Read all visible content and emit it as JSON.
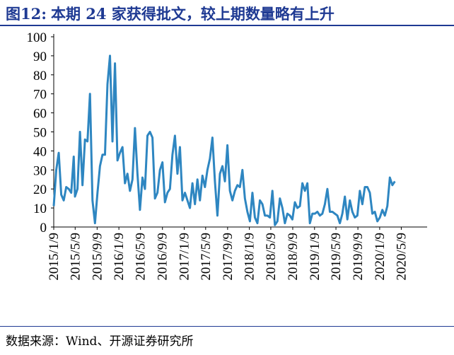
{
  "title": {
    "label": "图12:",
    "text": "本期 24 家获得批文，较上期数量略有上升"
  },
  "source": "数据来源：Wind、开源证券研究所",
  "colors": {
    "line": "#2e86c1",
    "title": "#1f3a93",
    "rule": "#1f3a93"
  },
  "chart_data": {
    "type": "line",
    "ylim": [
      0,
      100
    ],
    "yticks": [
      0,
      10,
      20,
      30,
      40,
      50,
      60,
      70,
      80,
      90,
      100
    ],
    "xlim": [
      "2015-01-09",
      "2020-09-15"
    ],
    "xtick_labels": [
      "2015/1/9",
      "2015/5/9",
      "2015/9/9",
      "2016/1/9",
      "2016/5/9",
      "2016/9/9",
      "2017/1/9",
      "2017/5/9",
      "2017/9/9",
      "2018/1/9",
      "2018/5/9",
      "2018/9/9",
      "2019/1/9",
      "2019/5/9",
      "2019/9/9",
      "2020/1/9",
      "2020/5/9"
    ],
    "grid": false,
    "legend": "none",
    "series": [
      {
        "values": [
          [
            "2015-01-09",
            11
          ],
          [
            "2015-01-23",
            30
          ],
          [
            "2015-02-06",
            39
          ],
          [
            "2015-02-20",
            17
          ],
          [
            "2015-03-06",
            14
          ],
          [
            "2015-03-20",
            21
          ],
          [
            "2015-04-03",
            20
          ],
          [
            "2015-04-17",
            18
          ],
          [
            "2015-05-01",
            37
          ],
          [
            "2015-05-08",
            16
          ],
          [
            "2015-05-22",
            20
          ],
          [
            "2015-06-05",
            50
          ],
          [
            "2015-06-19",
            22
          ],
          [
            "2015-07-03",
            46
          ],
          [
            "2015-07-17",
            45
          ],
          [
            "2015-07-31",
            70
          ],
          [
            "2015-08-14",
            14
          ],
          [
            "2015-08-28",
            2
          ],
          [
            "2015-09-11",
            18
          ],
          [
            "2015-09-25",
            32
          ],
          [
            "2015-10-09",
            38
          ],
          [
            "2015-10-23",
            38
          ],
          [
            "2015-11-06",
            75
          ],
          [
            "2015-11-20",
            90
          ],
          [
            "2015-12-04",
            45
          ],
          [
            "2015-12-18",
            86
          ],
          [
            "2016-01-01",
            35
          ],
          [
            "2016-01-15",
            39
          ],
          [
            "2016-01-29",
            42
          ],
          [
            "2016-02-12",
            23
          ],
          [
            "2016-02-26",
            28
          ],
          [
            "2016-03-11",
            19
          ],
          [
            "2016-03-25",
            25
          ],
          [
            "2016-04-08",
            52
          ],
          [
            "2016-04-22",
            28
          ],
          [
            "2016-05-06",
            9
          ],
          [
            "2016-05-20",
            26
          ],
          [
            "2016-06-03",
            20
          ],
          [
            "2016-06-17",
            48
          ],
          [
            "2016-07-01",
            50
          ],
          [
            "2016-07-15",
            47
          ],
          [
            "2016-07-29",
            15
          ],
          [
            "2016-08-12",
            18
          ],
          [
            "2016-08-26",
            30
          ],
          [
            "2016-09-09",
            34
          ],
          [
            "2016-09-23",
            13
          ],
          [
            "2016-10-07",
            18
          ],
          [
            "2016-10-21",
            20
          ],
          [
            "2016-11-04",
            38
          ],
          [
            "2016-11-18",
            48
          ],
          [
            "2016-12-02",
            28
          ],
          [
            "2016-12-16",
            42
          ],
          [
            "2016-12-30",
            14
          ],
          [
            "2017-01-13",
            18
          ],
          [
            "2017-01-27",
            14
          ],
          [
            "2017-02-10",
            10
          ],
          [
            "2017-02-24",
            23
          ],
          [
            "2017-03-10",
            12
          ],
          [
            "2017-03-24",
            25
          ],
          [
            "2017-04-07",
            14
          ],
          [
            "2017-04-21",
            27
          ],
          [
            "2017-05-05",
            21
          ],
          [
            "2017-05-19",
            30
          ],
          [
            "2017-06-02",
            36
          ],
          [
            "2017-06-16",
            47
          ],
          [
            "2017-06-30",
            24
          ],
          [
            "2017-07-14",
            6
          ],
          [
            "2017-07-28",
            28
          ],
          [
            "2017-08-11",
            32
          ],
          [
            "2017-08-25",
            24
          ],
          [
            "2017-09-08",
            43
          ],
          [
            "2017-09-22",
            19
          ],
          [
            "2017-10-06",
            14
          ],
          [
            "2017-10-20",
            19
          ],
          [
            "2017-11-03",
            22
          ],
          [
            "2017-11-17",
            21
          ],
          [
            "2017-12-01",
            30
          ],
          [
            "2017-12-15",
            15
          ],
          [
            "2017-12-29",
            8
          ],
          [
            "2018-01-12",
            3
          ],
          [
            "2018-01-26",
            18
          ],
          [
            "2018-02-09",
            5
          ],
          [
            "2018-02-23",
            2
          ],
          [
            "2018-03-09",
            14
          ],
          [
            "2018-03-23",
            12
          ],
          [
            "2018-04-06",
            6
          ],
          [
            "2018-04-20",
            6
          ],
          [
            "2018-05-04",
            5
          ],
          [
            "2018-05-18",
            19
          ],
          [
            "2018-06-01",
            1
          ],
          [
            "2018-06-15",
            3
          ],
          [
            "2018-06-29",
            15
          ],
          [
            "2018-07-13",
            10
          ],
          [
            "2018-07-27",
            2
          ],
          [
            "2018-08-10",
            7
          ],
          [
            "2018-08-24",
            6
          ],
          [
            "2018-09-07",
            4
          ],
          [
            "2018-09-21",
            13
          ],
          [
            "2018-10-05",
            10
          ],
          [
            "2018-10-19",
            11
          ],
          [
            "2018-11-02",
            23
          ],
          [
            "2018-11-16",
            19
          ],
          [
            "2018-11-30",
            23
          ],
          [
            "2018-12-14",
            2
          ],
          [
            "2018-12-28",
            7
          ],
          [
            "2019-01-11",
            7
          ],
          [
            "2019-01-25",
            8
          ],
          [
            "2019-02-08",
            6
          ],
          [
            "2019-02-22",
            7
          ],
          [
            "2019-03-08",
            12
          ],
          [
            "2019-03-22",
            20
          ],
          [
            "2019-04-05",
            8
          ],
          [
            "2019-04-19",
            8
          ],
          [
            "2019-05-03",
            7
          ],
          [
            "2019-05-17",
            6
          ],
          [
            "2019-05-31",
            2
          ],
          [
            "2019-06-14",
            7
          ],
          [
            "2019-06-28",
            16
          ],
          [
            "2019-07-12",
            4
          ],
          [
            "2019-07-26",
            14
          ],
          [
            "2019-08-09",
            8
          ],
          [
            "2019-08-23",
            5
          ],
          [
            "2019-09-06",
            6
          ],
          [
            "2019-09-20",
            19
          ],
          [
            "2019-10-04",
            12
          ],
          [
            "2019-10-18",
            21
          ],
          [
            "2019-11-01",
            21
          ],
          [
            "2019-11-15",
            18
          ],
          [
            "2019-11-29",
            7
          ],
          [
            "2019-12-13",
            8
          ],
          [
            "2019-12-27",
            3
          ],
          [
            "2020-01-10",
            5
          ],
          [
            "2020-01-24",
            9
          ],
          [
            "2020-02-07",
            6
          ],
          [
            "2020-02-21",
            11
          ],
          [
            "2020-03-06",
            26
          ],
          [
            "2020-03-20",
            22
          ],
          [
            "2020-04-03",
            24
          ]
        ]
      }
    ]
  }
}
